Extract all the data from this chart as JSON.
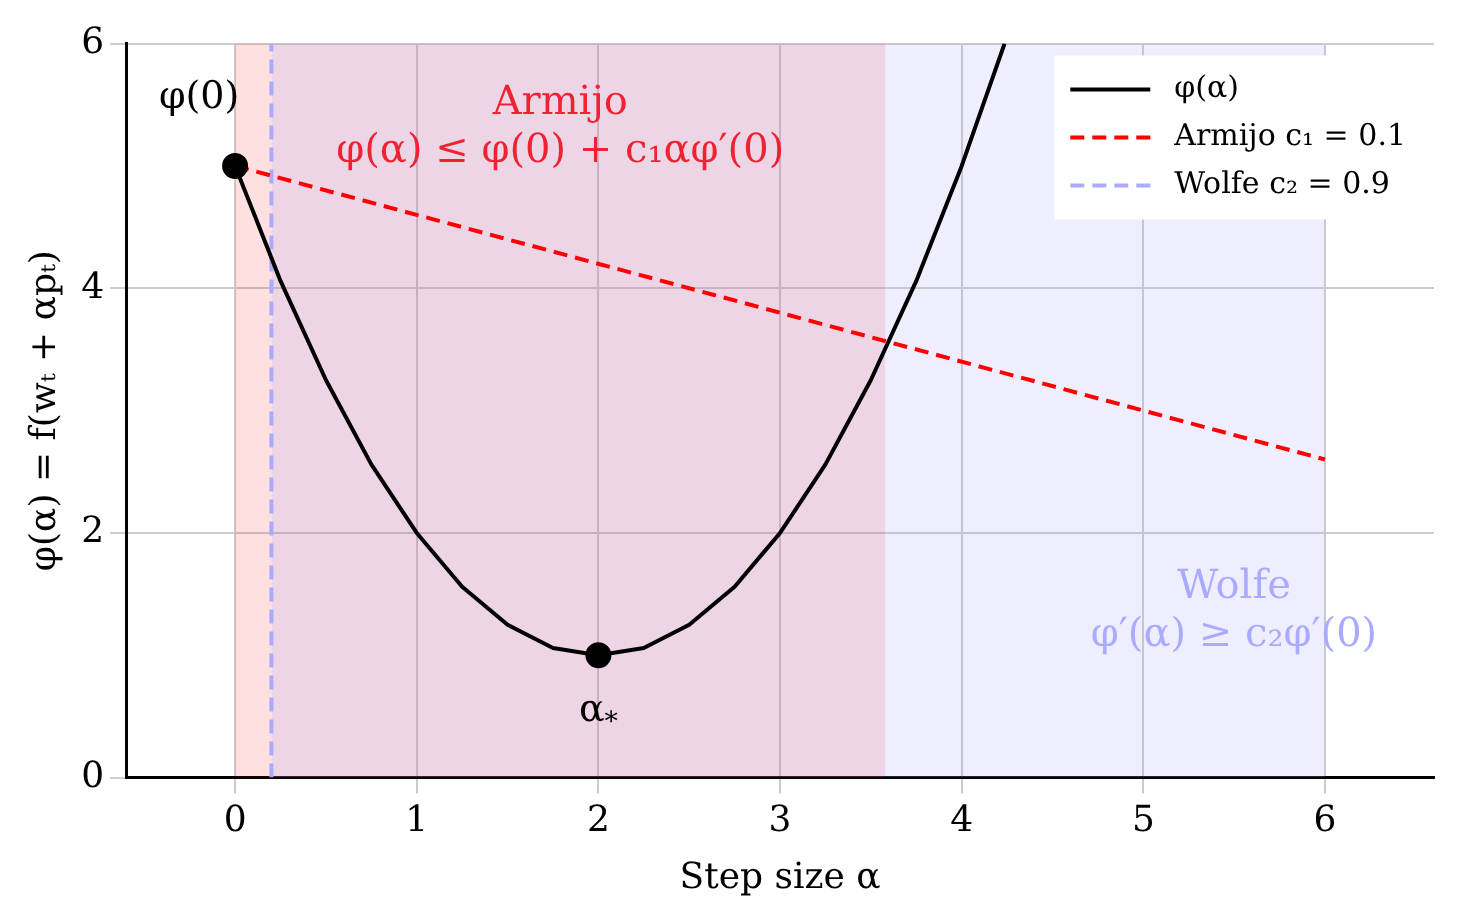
{
  "chart_data": {
    "type": "line",
    "xlabel": "Step size α",
    "ylabel": "φ(α) = f(wₜ + αpₜ)",
    "xlim": [
      -0.6,
      6.6
    ],
    "xticks": [
      0,
      1,
      2,
      3,
      4,
      5,
      6
    ],
    "ylim": [
      0,
      6
    ],
    "yticks": [
      0,
      2,
      4,
      6
    ],
    "grid": true,
    "legend": "top right",
    "series": [
      {
        "name": "φ(α)",
        "color": "#000000",
        "line_style": "solid",
        "x": [
          0,
          0.25,
          0.5,
          0.75,
          1,
          1.25,
          1.5,
          1.75,
          2,
          2.25,
          2.5,
          2.75,
          3,
          3.25,
          3.5,
          3.75,
          4,
          4.236
        ],
        "values": [
          5,
          4.06,
          3.25,
          2.56,
          2,
          1.56,
          1.25,
          1.06,
          1,
          1.06,
          1.25,
          1.56,
          2,
          2.56,
          3.25,
          4.06,
          5,
          6
        ]
      },
      {
        "name": "Armijo c₁ = 0.1",
        "color": "#ff0000",
        "line_style": "dashed",
        "x": [
          0,
          6
        ],
        "values": [
          5,
          2.6
        ]
      },
      {
        "name": "Wolfe c₂ = 0.9",
        "color": "#aaaaff",
        "line_style": "dashed",
        "x": [
          0.2,
          0.2
        ],
        "values": [
          0,
          6
        ]
      },
      {
        "type": "scatter",
        "color": "#000000",
        "marker": "circle",
        "x": [
          0,
          2
        ],
        "values": [
          5,
          1
        ]
      }
    ],
    "bands": [
      {
        "axis": "x",
        "from": 0,
        "to": 3.58,
        "label": "Armijo\nφ(α) ≤ φ(0) + c₁αφ′(0)",
        "color": "#ff0000"
      },
      {
        "axis": "x",
        "from": 0.2,
        "to": 6,
        "label": "Wolfe\nφ′(α) ≥ c₂φ′(0)",
        "color": "#aaaaff"
      }
    ],
    "annotations": [
      {
        "text": "φ(0)",
        "x": 0,
        "y": 5
      },
      {
        "text": "α$_{*}$",
        "x": 2,
        "y": 1
      }
    ]
  }
}
